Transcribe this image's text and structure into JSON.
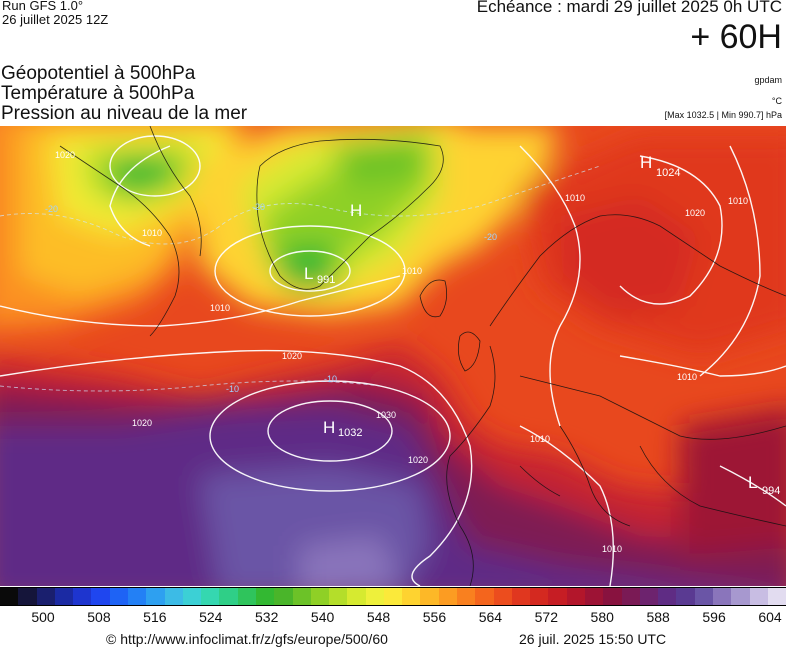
{
  "header": {
    "run_title": "Run GFS 1.0°",
    "run_date": "26 juillet 2025 12Z",
    "echeance": "Echéance : mardi 29 juillet 2025 0h UTC",
    "lead_time": "+ 60H"
  },
  "fields": [
    "Géopotentiel à 500hPa",
    "Température à 500hPa",
    "Pression au niveau de la mer"
  ],
  "units": {
    "geopotential": "gpdam",
    "temperature": "°C",
    "pressure_range": "[Max 1032.5 | Min 990.7] hPa"
  },
  "map_labels": {
    "highs_lows": [
      {
        "type": "H",
        "value": "1032"
      },
      {
        "type": "L",
        "value": "991"
      },
      {
        "type": "H",
        "value": ""
      },
      {
        "type": "H",
        "value": "1024"
      },
      {
        "type": "L",
        "value": "994"
      }
    ],
    "isobars": [
      "1020",
      "1010",
      "1010",
      "1020",
      "1010",
      "1020",
      "1030",
      "1020",
      "1010",
      "1020",
      "1010",
      "1010",
      "1010",
      "1010"
    ],
    "isotherms": [
      "-20",
      "-20",
      "-20",
      "-10",
      "-10"
    ]
  },
  "colorbar": {
    "colors": [
      "#0a0a0a",
      "#15153a",
      "#1a1f6e",
      "#1b2aa3",
      "#1e35cf",
      "#1f46ef",
      "#1e63f5",
      "#2380f5",
      "#2ea0f0",
      "#3cbbe6",
      "#3cd0d5",
      "#35d7b0",
      "#2fcf87",
      "#2fc45c",
      "#33b832",
      "#4ab52a",
      "#6cc228",
      "#8fd026",
      "#b4de2a",
      "#d6ea30",
      "#eef03b",
      "#fbe93a",
      "#fed330",
      "#fdb827",
      "#fc9c22",
      "#f9801f",
      "#f4651d",
      "#ec4d1e",
      "#e0371f",
      "#d42920",
      "#c61d24",
      "#b3162b",
      "#9d1335",
      "#88123f",
      "#7a1a55",
      "#6d236e",
      "#5f2c84",
      "#5a3a92",
      "#6a55a6",
      "#8a75bb",
      "#a798cf",
      "#c8bde3",
      "#e2dcf0"
    ],
    "ticks": [
      "500",
      "508",
      "516",
      "524",
      "532",
      "540",
      "548",
      "556",
      "564",
      "572",
      "580",
      "588",
      "596",
      "604"
    ]
  },
  "footer": {
    "source": "© http://www.infoclimat.fr/z/gfs/europe/500/60",
    "timestamp": "26 juil. 2025 15:50 UTC"
  }
}
